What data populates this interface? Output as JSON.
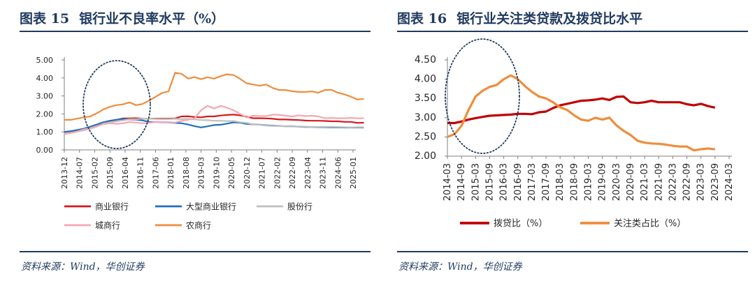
{
  "charts": [
    {
      "fig_label": "图表 15",
      "fig_title": "银行业不良率水平（%）",
      "source": "资料来源：Wind，华创证券"
    },
    {
      "fig_label": "图表 16",
      "fig_title": "银行业关注类贷款及拨贷比水平",
      "source": "资料来源：Wind，华创证券"
    }
  ],
  "chart_data": [
    {
      "type": "line",
      "title": "银行业不良率水平（%）",
      "ylim": [
        0,
        5
      ],
      "yticks": [
        "0.00",
        "1.00",
        "2.00",
        "3.00",
        "4.00",
        "5.00"
      ],
      "xticks": [
        "2013-12",
        "2014-07",
        "2015-02",
        "2015-09",
        "2016-04",
        "2016-11",
        "2017-06",
        "2018-01",
        "2018-08",
        "2019-03",
        "2019-10",
        "2020-05",
        "2020-12",
        "2021-07",
        "2022-02",
        "2022-09",
        "2023-04",
        "2023-11",
        "2024-06",
        "2025-01"
      ],
      "x_start": "2013-12",
      "x_step_quarters": 1,
      "legend_position": "bottom",
      "grid": false,
      "series": [
        {
          "name": "商业银行",
          "color": "#d7191c",
          "values": [
            1.0,
            1.04,
            1.08,
            1.16,
            1.25,
            1.39,
            1.5,
            1.59,
            1.67,
            1.75,
            1.75,
            1.76,
            1.74,
            1.74,
            1.74,
            1.74,
            1.74,
            1.75,
            1.86,
            1.87,
            1.83,
            1.81,
            1.86,
            1.86,
            1.91,
            1.94,
            1.96,
            1.92,
            1.84,
            1.76,
            1.76,
            1.75,
            1.73,
            1.69,
            1.69,
            1.67,
            1.66,
            1.63,
            1.62,
            1.62,
            1.61,
            1.59,
            1.59,
            1.56,
            1.56,
            1.5,
            1.51
          ]
        },
        {
          "name": "大型商业银行",
          "color": "#1f6fbf",
          "values": [
            0.99,
            1.04,
            1.11,
            1.18,
            1.29,
            1.41,
            1.54,
            1.62,
            1.68,
            1.72,
            1.69,
            1.68,
            1.64,
            1.56,
            1.55,
            1.54,
            1.53,
            1.5,
            1.48,
            1.41,
            1.32,
            1.25,
            1.31,
            1.38,
            1.4,
            1.46,
            1.53,
            1.51,
            1.44,
            1.42,
            1.4,
            1.37,
            1.35,
            1.33,
            1.31,
            1.31,
            1.29,
            1.27,
            1.27,
            1.26,
            1.26,
            1.25,
            1.25,
            1.24,
            1.24,
            1.24,
            1.24
          ]
        },
        {
          "name": "股份行",
          "color": "#bfbfbf",
          "values": [
            0.87,
            0.94,
            1.02,
            1.09,
            1.18,
            1.3,
            1.46,
            1.53,
            1.59,
            1.64,
            1.7,
            1.7,
            1.74,
            1.74,
            1.72,
            1.71,
            1.71,
            1.73,
            1.71,
            1.72,
            1.7,
            1.66,
            1.65,
            1.62,
            1.62,
            1.6,
            1.6,
            1.54,
            1.5,
            1.42,
            1.39,
            1.35,
            1.33,
            1.32,
            1.31,
            1.3,
            1.3,
            1.29,
            1.28,
            1.27,
            1.28,
            1.28,
            1.27,
            1.26,
            1.25,
            1.26,
            1.26
          ]
        },
        {
          "name": "城商行",
          "color": "#f4a8b4",
          "values": [
            0.88,
            0.95,
            1.02,
            1.14,
            1.21,
            1.33,
            1.43,
            1.48,
            1.45,
            1.48,
            1.55,
            1.52,
            1.48,
            1.5,
            1.56,
            1.55,
            1.54,
            1.52,
            1.61,
            1.67,
            1.75,
            2.2,
            2.45,
            2.3,
            2.45,
            2.34,
            2.2,
            2.0,
            1.8,
            1.9,
            1.88,
            1.88,
            1.96,
            1.94,
            1.9,
            1.86,
            1.92,
            1.88,
            1.9,
            1.86,
            1.76,
            1.78,
            1.76,
            1.76,
            1.78,
            1.76,
            1.76
          ]
        },
        {
          "name": "农商行",
          "color": "#f08c3a",
          "values": [
            1.67,
            1.67,
            1.74,
            1.81,
            1.86,
            2.04,
            2.25,
            2.39,
            2.49,
            2.53,
            2.64,
            2.49,
            2.55,
            2.74,
            2.95,
            3.16,
            3.26,
            4.29,
            4.23,
            3.96,
            4.05,
            3.93,
            4.04,
            3.96,
            4.1,
            4.2,
            4.16,
            3.95,
            3.7,
            3.63,
            3.57,
            3.63,
            3.44,
            3.33,
            3.33,
            3.26,
            3.22,
            3.22,
            3.25,
            3.18,
            3.33,
            3.34,
            3.18,
            3.09,
            2.96,
            2.8,
            2.84
          ]
        }
      ]
    },
    {
      "type": "line",
      "title": "银行业关注类贷款及拨贷比水平",
      "ylim": [
        2,
        4.5
      ],
      "yticks": [
        "2.00",
        "2.50",
        "3.00",
        "3.50",
        "4.00",
        "4.50"
      ],
      "xticks": [
        "2014-03",
        "2014-09",
        "2015-03",
        "2015-09",
        "2016-03",
        "2016-09",
        "2017-03",
        "2017-09",
        "2018-03",
        "2018-09",
        "2019-03",
        "2019-09",
        "2020-03",
        "2020-09",
        "2021-03",
        "2021-09",
        "2022-03",
        "2022-09",
        "2023-03",
        "2023-09",
        "2024-03"
      ],
      "x_start": "2014-03",
      "x_step_quarters": 1,
      "legend_position": "bottom",
      "grid": false,
      "series": [
        {
          "name": "拨贷比（%）",
          "color": "#c00000",
          "values": [
            2.86,
            2.86,
            2.9,
            2.95,
            2.99,
            3.02,
            3.05,
            3.06,
            3.07,
            3.08,
            3.1,
            3.1,
            3.09,
            3.14,
            3.16,
            3.25,
            3.32,
            3.36,
            3.4,
            3.44,
            3.45,
            3.47,
            3.5,
            3.46,
            3.54,
            3.55,
            3.4,
            3.38,
            3.4,
            3.44,
            3.4,
            3.4,
            3.4,
            3.4,
            3.35,
            3.32,
            3.36,
            3.3,
            3.26
          ]
        },
        {
          "name": "关注类占比（%）",
          "color": "#f08c3a",
          "values": [
            2.5,
            2.57,
            2.79,
            3.2,
            3.55,
            3.7,
            3.8,
            3.85,
            4.0,
            4.1,
            4.0,
            3.82,
            3.67,
            3.55,
            3.5,
            3.4,
            3.27,
            3.2,
            3.06,
            2.95,
            2.92,
            3.0,
            2.95,
            3.0,
            2.8,
            2.66,
            2.55,
            2.4,
            2.35,
            2.33,
            2.32,
            2.3,
            2.27,
            2.25,
            2.25,
            2.15,
            2.18,
            2.2,
            2.18
          ]
        }
      ]
    }
  ]
}
